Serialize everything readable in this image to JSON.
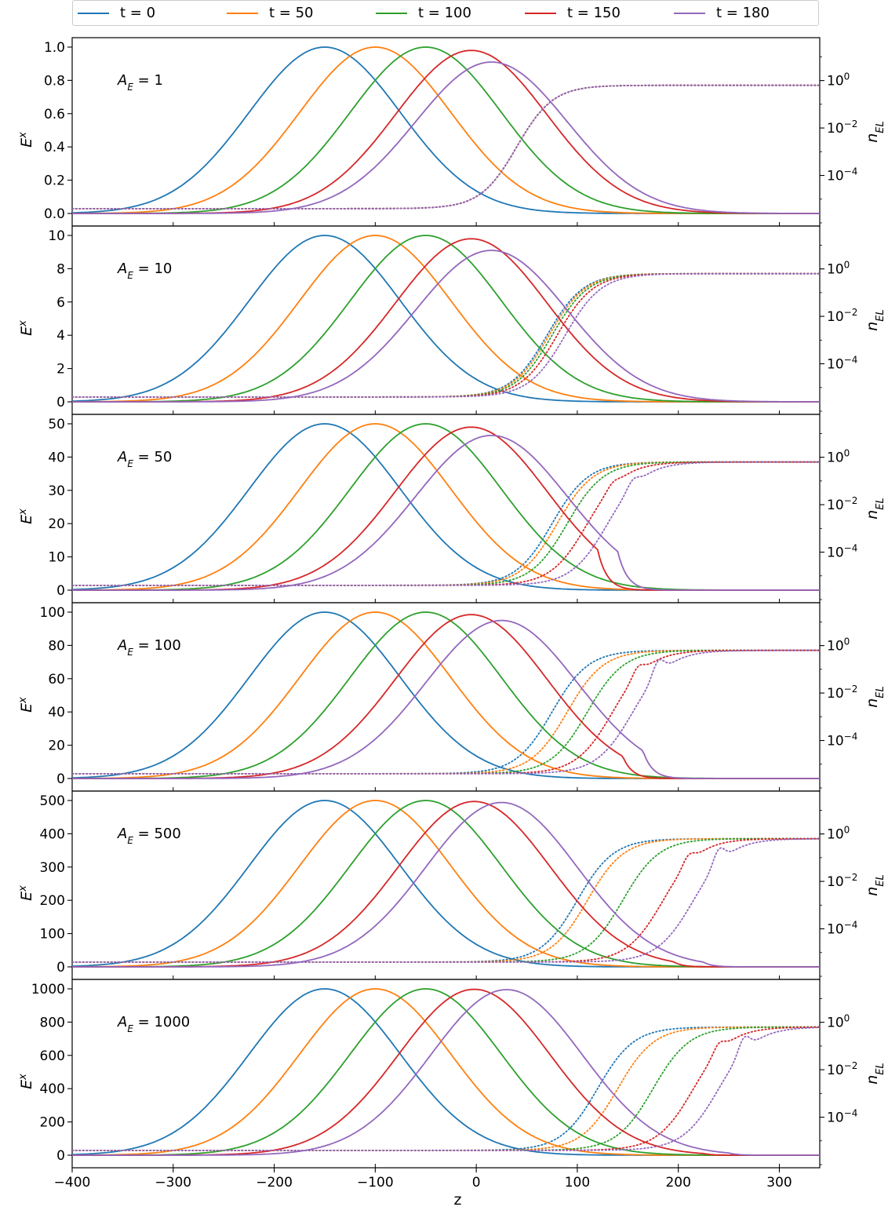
{
  "chart_data": {
    "type": "line",
    "xlabel": "z",
    "left_ylabel_base": "E",
    "left_ylabel_sup": "x",
    "right_ylabel_base": "n",
    "right_ylabel_sub": "EL",
    "x_range": [
      -400,
      340
    ],
    "x_ticks": [
      -400,
      -300,
      -200,
      -100,
      0,
      100,
      200,
      300
    ],
    "x_tick_labels": [
      "−400",
      "−300",
      "−200",
      "−100",
      "0",
      "100",
      "200",
      "300"
    ],
    "right_axis": {
      "scale": "log",
      "range": [
        1e-06,
        30
      ],
      "ticks": [
        1,
        0.01,
        0.0001
      ],
      "tick_labels": [
        [
          "10",
          "0"
        ],
        [
          "10",
          "−2"
        ],
        [
          "10",
          "−4"
        ]
      ]
    },
    "legend": [
      {
        "name": "t = 0",
        "t": 0,
        "color": "#1f77b4"
      },
      {
        "name": "t = 50",
        "t": 50,
        "color": "#ff7f0e"
      },
      {
        "name": "t = 100",
        "t": 100,
        "color": "#2ca02c"
      },
      {
        "name": "t = 150",
        "t": 150,
        "color": "#d62728"
      },
      {
        "name": "t = 180",
        "t": 180,
        "color": "#9467bd"
      }
    ],
    "solid_series": "E^x (left axis)",
    "dotted_series": "n_EL (right axis, log scale)",
    "panels": [
      {
        "label_base": "A",
        "label_sub": "E",
        "label_value": " = 1",
        "amplitude": 1,
        "ylim": [
          0,
          1.04
        ],
        "yticks": [
          0,
          0.2,
          0.4,
          0.6,
          0.8,
          1.0
        ],
        "ytick_labels": [
          "0.0",
          "0.2",
          "0.4",
          "0.6",
          "0.8",
          "1.0"
        ],
        "peaks": [
          [
            -150,
            1.0
          ],
          [
            -100,
            1.0
          ],
          [
            -50,
            1.0
          ],
          [
            -5,
            0.98
          ],
          [
            15,
            0.91
          ]
        ],
        "n_onset_z": [
          40,
          40,
          40,
          40,
          40
        ]
      },
      {
        "label_base": "A",
        "label_sub": "E",
        "label_value": " = 10",
        "amplitude": 10,
        "ylim": [
          0,
          10.4
        ],
        "yticks": [
          0,
          2,
          4,
          6,
          8,
          10
        ],
        "ytick_labels": [
          "0",
          "2",
          "4",
          "6",
          "8",
          "10"
        ],
        "peaks": [
          [
            -150,
            10
          ],
          [
            -100,
            10
          ],
          [
            -50,
            10
          ],
          [
            -5,
            9.8
          ],
          [
            15,
            9.1
          ]
        ],
        "n_onset_z": [
          70,
          72,
          75,
          80,
          88
        ]
      },
      {
        "label_base": "A",
        "label_sub": "E",
        "label_value": " = 50",
        "amplitude": 50,
        "ylim": [
          0,
          52
        ],
        "yticks": [
          0,
          10,
          20,
          30,
          40,
          50
        ],
        "ytick_labels": [
          "0",
          "10",
          "20",
          "30",
          "40",
          "50"
        ],
        "peaks": [
          [
            -150,
            50
          ],
          [
            -100,
            50
          ],
          [
            -50,
            50
          ],
          [
            -5,
            49
          ],
          [
            15,
            46.5
          ]
        ],
        "n_onset_z": [
          75,
          80,
          90,
          110,
          130
        ]
      },
      {
        "label_base": "A",
        "label_sub": "E",
        "label_value": " = 100",
        "amplitude": 100,
        "ylim": [
          0,
          104
        ],
        "yticks": [
          0,
          20,
          40,
          60,
          80,
          100
        ],
        "ytick_labels": [
          "0",
          "20",
          "40",
          "60",
          "80",
          "100"
        ],
        "peaks": [
          [
            -150,
            100
          ],
          [
            -100,
            100
          ],
          [
            -50,
            100
          ],
          [
            -5,
            98.5
          ],
          [
            25,
            95
          ]
        ],
        "n_onset_z": [
          75,
          90,
          110,
          135,
          155
        ]
      },
      {
        "label_base": "A",
        "label_sub": "E",
        "label_value": " = 500",
        "amplitude": 500,
        "ylim": [
          0,
          520
        ],
        "yticks": [
          0,
          100,
          200,
          300,
          400,
          500
        ],
        "ytick_labels": [
          "0",
          "100",
          "200",
          "300",
          "400",
          "500"
        ],
        "peaks": [
          [
            -150,
            500
          ],
          [
            -100,
            500
          ],
          [
            -50,
            500
          ],
          [
            -2,
            497
          ],
          [
            25,
            494
          ]
        ],
        "n_onset_z": [
          100,
          110,
          145,
          185,
          215
        ]
      },
      {
        "label_base": "A",
        "label_sub": "E",
        "label_value": " = 1000",
        "amplitude": 1000,
        "ylim": [
          0,
          1040
        ],
        "yticks": [
          0,
          200,
          400,
          600,
          800,
          1000
        ],
        "ytick_labels": [
          "0",
          "200",
          "400",
          "600",
          "800",
          "1000"
        ],
        "peaks": [
          [
            -150,
            1000
          ],
          [
            -100,
            1000
          ],
          [
            -50,
            1000
          ],
          [
            -2,
            997
          ],
          [
            30,
            995
          ]
        ],
        "n_onset_z": [
          120,
          140,
          175,
          215,
          240
        ]
      }
    ]
  }
}
